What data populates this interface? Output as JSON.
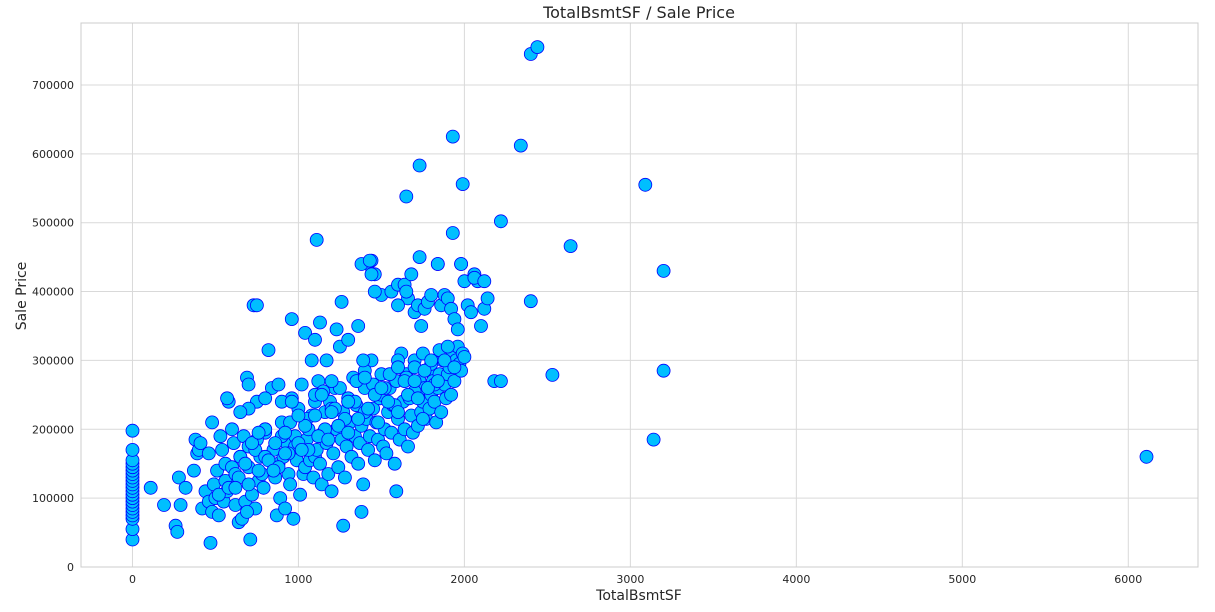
{
  "chart_data": {
    "type": "scatter",
    "title": "TotalBsmtSF / Sale Price",
    "xlabel": "TotalBsmtSF",
    "ylabel": "Sale Price",
    "xlim": [
      -310,
      6420
    ],
    "ylim": [
      0,
      790000
    ],
    "xticks": [
      0,
      1000,
      2000,
      3000,
      4000,
      5000,
      6000
    ],
    "yticks": [
      0,
      100000,
      200000,
      300000,
      400000,
      500000,
      600000,
      700000
    ],
    "grid": true,
    "legend": "none",
    "marker_fill": "#00bfff",
    "marker_edge": "#0000ff",
    "series": [
      {
        "x": [
          0,
          0,
          0,
          0,
          0,
          0,
          0,
          0,
          0,
          0,
          0,
          0,
          0,
          0,
          0,
          0,
          0,
          0,
          0,
          0,
          0,
          0,
          110,
          190,
          260,
          270,
          280,
          290,
          320,
          370,
          380,
          390,
          400,
          410,
          420,
          440,
          460,
          470,
          480,
          490,
          500,
          510,
          520,
          530,
          540,
          550,
          560,
          570,
          580,
          590,
          600,
          610,
          620,
          630,
          640,
          650,
          660,
          670,
          680,
          690,
          700,
          710,
          720,
          730,
          740,
          750,
          760,
          770,
          780,
          790,
          800,
          820,
          840,
          850,
          860,
          870,
          880,
          890,
          900,
          910,
          920,
          930,
          940,
          950,
          960,
          970,
          980,
          990,
          1000,
          1010,
          1020,
          1030,
          1040,
          1050,
          1060,
          1070,
          1080,
          1090,
          1100,
          1110,
          1120,
          1130,
          1140,
          1150,
          1160,
          1170,
          1180,
          1190,
          1200,
          1210,
          1220,
          1230,
          1240,
          1250,
          1260,
          1270,
          1280,
          1290,
          1300,
          1310,
          1320,
          1330,
          1340,
          1350,
          1360,
          1370,
          1380,
          1390,
          1400,
          1410,
          1420,
          1430,
          1440,
          1450,
          1460,
          1470,
          1480,
          1490,
          1500,
          1510,
          1520,
          1530,
          1540,
          1550,
          1560,
          1570,
          1580,
          1590,
          1600,
          1610,
          1620,
          1630,
          1640,
          1650,
          1660,
          1670,
          1680,
          1690,
          1700,
          1710,
          1720,
          1730,
          1740,
          1750,
          1760,
          1770,
          1780,
          1790,
          1800,
          1810,
          1820,
          1830,
          1840,
          1850,
          1860,
          1870,
          1880,
          1890,
          1900,
          1910,
          1920,
          1930,
          1940,
          1950,
          1960,
          1970,
          1980,
          1990,
          2000,
          600,
          650,
          700,
          750,
          800,
          850,
          900,
          950,
          1000,
          1050,
          1100,
          1150,
          1200,
          1250,
          1300,
          1350,
          1400,
          1450,
          1500,
          1550,
          1600,
          1650,
          1700,
          1750,
          1800,
          1850,
          560,
          620,
          680,
          740,
          800,
          860,
          920,
          980,
          1040,
          1100,
          1160,
          1220,
          1280,
          1340,
          1400,
          1460,
          1520,
          1580,
          1640,
          1700,
          1760,
          1820,
          1880,
          1940,
          520,
          580,
          640,
          700,
          760,
          820,
          880,
          940,
          1000,
          1060,
          1120,
          1180,
          1240,
          1300,
          1360,
          1420,
          1480,
          1540,
          1600,
          1660,
          1720,
          1780,
          1840,
          700,
          800,
          900,
          1000,
          1100,
          1200,
          1300,
          1400,
          1500,
          1600,
          1700,
          1800,
          1900,
          730,
          960,
          1040,
          1100,
          1130,
          1170,
          1230,
          1260,
          1300,
          1360,
          1390,
          1420,
          1440,
          1460,
          1500,
          1560,
          1600,
          1640,
          1660,
          1700,
          1720,
          1740,
          1760,
          1780,
          1800,
          1840,
          1860,
          1880,
          1900,
          1920,
          1940,
          1960,
          1980,
          2000,
          2020,
          2040,
          2060,
          2080,
          2100,
          2120,
          2140,
          2180,
          2220,
          1110,
          1380,
          1430,
          1440,
          1460,
          1600,
          1650,
          1680,
          1730,
          1840,
          1930,
          1980,
          2060,
          2120,
          1650,
          1730,
          1930,
          1990,
          2220,
          2400,
          2440,
          2340,
          2640,
          2530,
          2400,
          3090,
          3140,
          3200,
          3200,
          6110,
          750,
          700,
          460,
          480,
          570,
          620,
          650,
          690,
          720,
          760,
          800,
          850,
          880,
          920,
          960,
          1020,
          1080,
          1140,
          1200,
          1270,
          1380,
          1590,
          1750
        ],
        "y": [
          40000,
          55000,
          70000,
          75000,
          80000,
          85000,
          90000,
          95000,
          100000,
          105000,
          110000,
          115000,
          120000,
          125000,
          130000,
          135000,
          140000,
          145000,
          150000,
          155000,
          170000,
          198000,
          115000,
          90000,
          60000,
          51000,
          130000,
          90000,
          115000,
          140000,
          185000,
          165000,
          170000,
          180000,
          85000,
          110000,
          95000,
          35000,
          80000,
          120000,
          100000,
          140000,
          75000,
          190000,
          170000,
          95000,
          150000,
          110000,
          240000,
          125000,
          200000,
          180000,
          90000,
          130000,
          65000,
          160000,
          70000,
          190000,
          95000,
          275000,
          145000,
          40000,
          105000,
          175000,
          85000,
          240000,
          125000,
          160000,
          135000,
          115000,
          195000,
          315000,
          260000,
          140000,
          130000,
          75000,
          150000,
          100000,
          210000,
          160000,
          85000,
          180000,
          135000,
          120000,
          245000,
          70000,
          190000,
          155000,
          175000,
          105000,
          265000,
          135000,
          145000,
          185000,
          200000,
          155000,
          220000,
          130000,
          160000,
          170000,
          270000,
          150000,
          120000,
          195000,
          225000,
          180000,
          135000,
          240000,
          110000,
          165000,
          260000,
          200000,
          145000,
          320000,
          185000,
          225000,
          130000,
          175000,
          240000,
          210000,
          160000,
          275000,
          190000,
          235000,
          150000,
          180000,
          205000,
          120000,
          260000,
          215000,
          170000,
          190000,
          300000,
          230000,
          155000,
          210000,
          185000,
          245000,
          280000,
          175000,
          200000,
          165000,
          225000,
          260000,
          195000,
          235000,
          150000,
          270000,
          215000,
          185000,
          310000,
          240000,
          200000,
          280000,
          175000,
          245000,
          220000,
          195000,
          300000,
          250000,
          205000,
          270000,
          225000,
          240000,
          260000,
          215000,
          285000,
          230000,
          250000,
          270000,
          240000,
          210000,
          260000,
          280000,
          225000,
          300000,
          265000,
          245000,
          280000,
          290000,
          250000,
          310000,
          270000,
          300000,
          320000,
          295000,
          285000,
          310000,
          305000,
          145000,
          160000,
          175000,
          185000,
          200000,
          170000,
          190000,
          210000,
          230000,
          215000,
          240000,
          255000,
          230000,
          260000,
          245000,
          270000,
          285000,
          265000,
          250000,
          280000,
          300000,
          275000,
          290000,
          310000,
          295000,
          315000,
          125000,
          135000,
          150000,
          170000,
          160000,
          180000,
          195000,
          175000,
          205000,
          220000,
          200000,
          230000,
          215000,
          240000,
          225000,
          250000,
          260000,
          235000,
          270000,
          255000,
          285000,
          265000,
          300000,
          290000,
          105000,
          115000,
          130000,
          120000,
          140000,
          155000,
          145000,
          165000,
          180000,
          170000,
          190000,
          185000,
          205000,
          195000,
          215000,
          230000,
          210000,
          240000,
          225000,
          250000,
          245000,
          260000,
          270000,
          230000,
          200000,
          240000,
          220000,
          250000,
          270000,
          240000,
          275000,
          260000,
          290000,
          270000,
          300000,
          320000,
          380000,
          360000,
          340000,
          330000,
          355000,
          300000,
          345000,
          385000,
          330000,
          350000,
          300000,
          440000,
          445000,
          425000,
          395000,
          400000,
          410000,
          410000,
          390000,
          370000,
          380000,
          350000,
          375000,
          385000,
          395000,
          440000,
          380000,
          395000,
          390000,
          375000,
          360000,
          345000,
          440000,
          415000,
          380000,
          370000,
          425000,
          415000,
          350000,
          375000,
          390000,
          270000,
          270000,
          475000,
          440000,
          445000,
          425000,
          400000,
          380000,
          400000,
          425000,
          450000,
          440000,
          485000,
          440000,
          420000,
          415000,
          538000,
          583000,
          625000,
          556000,
          502000,
          745000,
          755000,
          612000,
          466000,
          279000,
          386000,
          555000,
          185000,
          430000,
          285000,
          160000,
          380000,
          265000,
          165000,
          210000,
          245000,
          115000,
          225000,
          80000,
          180000,
          195000,
          245000,
          140000,
          265000,
          165000,
          240000,
          170000,
          300000,
          250000,
          225000,
          60000,
          80000,
          110000,
          215000
        ]
      }
    ]
  }
}
